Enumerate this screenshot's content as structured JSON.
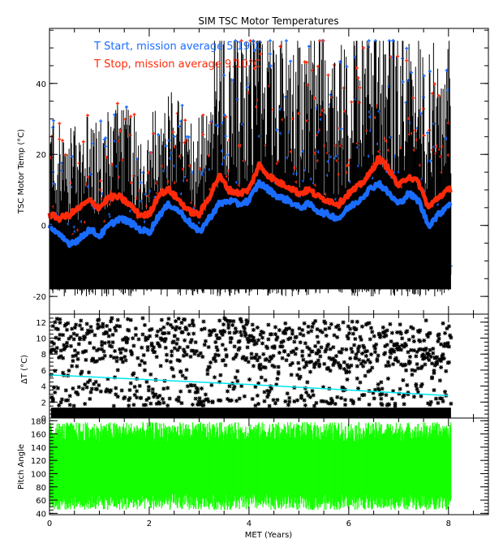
{
  "figure": {
    "title": "SIM TSC Motor Temperatures",
    "xlabel": "MET (Years)",
    "x_ticks": [
      "0",
      "2",
      "4",
      "6",
      "8"
    ],
    "x_tick_values": [
      0,
      2,
      4,
      6,
      8
    ],
    "xlim": [
      0,
      8.8
    ]
  },
  "colors": {
    "t_start": "#1a6cff",
    "t_stop": "#ff2a0a",
    "raw": "#000000",
    "delta_fit": "#00e5ee",
    "pitch": "#14ff00",
    "axes": "#000000"
  },
  "panels": {
    "temp": {
      "ylabel": "TSC Motor Temp (°C)",
      "y_ticks": [
        "-20",
        "0",
        "20",
        "40"
      ],
      "y_tick_values": [
        -20,
        0,
        20,
        40
      ],
      "ylim": [
        -25,
        55.5
      ],
      "legend": {
        "start": "T Start, mission average  5.19°C",
        "stop": "T Stop, mission average  9.10°C"
      }
    },
    "delta": {
      "ylabel": "ΔT (°C)",
      "y_ticks": [
        "0",
        "2",
        "4",
        "6",
        "8",
        "10",
        "12"
      ],
      "y_tick_values": [
        0,
        2,
        4,
        6,
        8,
        10,
        12
      ],
      "ylim": [
        0,
        13
      ]
    },
    "pitch": {
      "ylabel": "Pitch Angle",
      "y_ticks": [
        "40",
        "60",
        "80",
        "100",
        "120",
        "140",
        "160",
        "180"
      ],
      "y_tick_values": [
        40,
        60,
        80,
        100,
        120,
        140,
        160,
        180
      ],
      "ylim": [
        38,
        184
      ]
    }
  },
  "chart_data": [
    {
      "type": "scatter",
      "title": "SIM TSC Motor Temperatures",
      "xlabel": "MET (Years)",
      "ylabel": "TSC Motor Temp (°C)",
      "xlim": [
        0,
        8.8
      ],
      "ylim": [
        -25,
        55
      ],
      "legend_position": "upper-left",
      "series": [
        {
          "name": "T Start (smoothed)",
          "color": "#1a6cff",
          "x": [
            0.0,
            0.2,
            0.4,
            0.6,
            0.8,
            1.0,
            1.2,
            1.4,
            1.6,
            1.8,
            2.0,
            2.2,
            2.4,
            2.6,
            2.8,
            3.0,
            3.2,
            3.4,
            3.6,
            3.8,
            4.0,
            4.2,
            4.4,
            4.6,
            4.8,
            5.0,
            5.2,
            5.4,
            5.6,
            5.8,
            6.0,
            6.2,
            6.4,
            6.6,
            6.8,
            7.0,
            7.2,
            7.4,
            7.6,
            7.8,
            8.0
          ],
          "y": [
            0,
            -3,
            -5,
            -4,
            -1,
            -3,
            0,
            2,
            1,
            -1,
            -2,
            3,
            6,
            4,
            1,
            -2,
            2,
            6,
            7,
            6,
            7,
            12,
            10,
            8,
            7,
            5,
            6,
            4,
            3,
            2,
            5,
            7,
            10,
            12,
            9,
            6,
            9,
            7,
            0,
            3,
            6
          ]
        },
        {
          "name": "T Stop (smoothed)",
          "color": "#ff2a0a",
          "x": [
            0.0,
            0.2,
            0.4,
            0.6,
            0.8,
            1.0,
            1.2,
            1.4,
            1.6,
            1.8,
            2.0,
            2.2,
            2.4,
            2.6,
            2.8,
            3.0,
            3.2,
            3.4,
            3.6,
            3.8,
            4.0,
            4.2,
            4.4,
            4.6,
            4.8,
            5.0,
            5.2,
            5.4,
            5.6,
            5.8,
            6.0,
            6.2,
            6.4,
            6.6,
            6.8,
            7.0,
            7.2,
            7.4,
            7.6,
            7.8,
            8.0
          ],
          "y": [
            3,
            2,
            3,
            5,
            7,
            5,
            8,
            8,
            6,
            3,
            3,
            9,
            10,
            7,
            4,
            3,
            8,
            14,
            10,
            9,
            10,
            17,
            14,
            12,
            11,
            9,
            10,
            8,
            7,
            6,
            9,
            11,
            14,
            19,
            16,
            11,
            14,
            12,
            5,
            8,
            10
          ]
        },
        {
          "name": "Raw temperature range",
          "color": "#000000",
          "y_range": [
            -19,
            52
          ]
        }
      ],
      "annotations": [
        "T Start, mission average  5.19°C",
        "T Stop, mission average  9.10°C"
      ],
      "mission_average": {
        "t_start": 5.19,
        "t_stop": 9.1
      }
    },
    {
      "type": "scatter",
      "ylabel": "ΔT (°C)",
      "xlabel": "",
      "xlim": [
        0,
        8.8
      ],
      "ylim": [
        0,
        13
      ],
      "series": [
        {
          "name": "ΔT points",
          "color": "#000000",
          "y_range": [
            0,
            12.8
          ],
          "dense_bands": [
            [
              0,
              1.5
            ],
            [
              7,
              12
            ]
          ]
        },
        {
          "name": "ΔT trend",
          "color": "#00e5ee",
          "x": [
            0,
            2,
            4,
            6,
            8
          ],
          "y": [
            5.4,
            4.8,
            4.2,
            3.5,
            2.8
          ]
        }
      ]
    },
    {
      "type": "bar",
      "ylabel": "Pitch Angle",
      "xlabel": "MET (Years)",
      "xlim": [
        0,
        8.8
      ],
      "ylim": [
        38,
        184
      ],
      "series": [
        {
          "name": "Pitch angle",
          "color": "#14ff00",
          "y_range": [
            45,
            178
          ],
          "x_extent": [
            0,
            8.05
          ]
        }
      ]
    }
  ]
}
